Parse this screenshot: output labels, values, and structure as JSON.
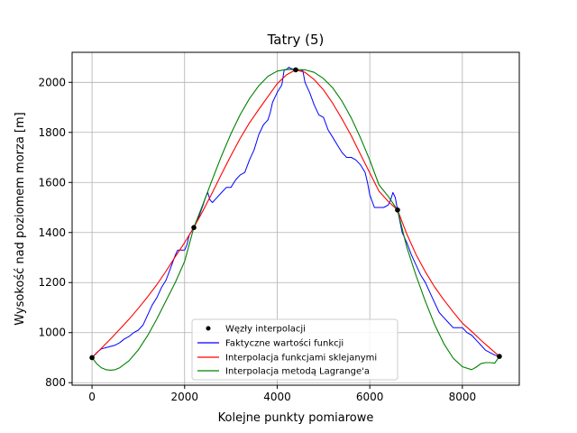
{
  "chart_data": {
    "type": "line",
    "title": "Tatry (5)",
    "xlabel": "Kolejne punkty pomiarowe",
    "ylabel": "Wysokość nad poziomem morza [m]",
    "xlim": [
      -430,
      9230
    ],
    "ylim": [
      790,
      2120
    ],
    "xticks": [
      0,
      2000,
      4000,
      6000,
      8000
    ],
    "yticks": [
      800,
      1000,
      1200,
      1400,
      1600,
      1800,
      2000
    ],
    "xtick_labels": [
      "0",
      "2000",
      "4000",
      "6000",
      "8000"
    ],
    "ytick_labels": [
      "800",
      "1000",
      "1200",
      "1400",
      "1600",
      "1800",
      "2000"
    ],
    "grid": true,
    "legend_position": "lower center",
    "nodes": {
      "name": "Węzły interpolacji",
      "color": "#000000",
      "x": [
        0,
        2200,
        4400,
        6600,
        8800
      ],
      "y": [
        900,
        1420,
        2050,
        1490,
        905
      ]
    },
    "series": [
      {
        "name": "Faktyczne wartości funkcji",
        "color": "#0000ff",
        "x": [
          0,
          100,
          200,
          300,
          500,
          600,
          700,
          800,
          900,
          1000,
          1100,
          1200,
          1300,
          1400,
          1500,
          1600,
          1700,
          1800,
          1850,
          1950,
          2000,
          2050,
          2100,
          2200,
          2300,
          2400,
          2450,
          2500,
          2550,
          2600,
          2700,
          2800,
          2900,
          3000,
          3100,
          3200,
          3300,
          3400,
          3500,
          3550,
          3600,
          3700,
          3750,
          3800,
          3850,
          3900,
          4000,
          4100,
          4150,
          4200,
          4250,
          4300,
          4400,
          4500,
          4550,
          4600,
          4700,
          4800,
          4900,
          5000,
          5100,
          5200,
          5300,
          5400,
          5500,
          5600,
          5700,
          5800,
          5900,
          5950,
          6000,
          6100,
          6200,
          6300,
          6400,
          6450,
          6500,
          6550,
          6600,
          6700,
          6800,
          6900,
          7000,
          7100,
          7200,
          7300,
          7400,
          7500,
          7600,
          7700,
          7800,
          7900,
          8000,
          8100,
          8200,
          8300,
          8400,
          8500,
          8600,
          8700,
          8800
        ],
        "y": [
          900,
          920,
          935,
          940,
          950,
          960,
          975,
          985,
          1000,
          1010,
          1030,
          1070,
          1110,
          1140,
          1180,
          1210,
          1260,
          1310,
          1330,
          1330,
          1330,
          1350,
          1390,
          1420,
          1460,
          1510,
          1540,
          1560,
          1530,
          1520,
          1540,
          1560,
          1580,
          1580,
          1610,
          1630,
          1640,
          1690,
          1730,
          1760,
          1790,
          1830,
          1840,
          1850,
          1880,
          1920,
          1960,
          1990,
          2050,
          2050,
          2060,
          2055,
          2050,
          2045,
          2050,
          2000,
          1960,
          1910,
          1870,
          1860,
          1810,
          1780,
          1750,
          1720,
          1700,
          1700,
          1690,
          1670,
          1640,
          1600,
          1550,
          1500,
          1500,
          1500,
          1510,
          1530,
          1560,
          1540,
          1490,
          1400,
          1360,
          1310,
          1270,
          1230,
          1200,
          1160,
          1120,
          1080,
          1060,
          1040,
          1020,
          1020,
          1020,
          1000,
          990,
          970,
          950,
          930,
          920,
          910,
          905
        ]
      },
      {
        "name": "Interpolacja funkcjami sklejanymi",
        "color": "#ff0000",
        "x": [
          0,
          200,
          400,
          600,
          800,
          1000,
          1200,
          1400,
          1600,
          1800,
          2000,
          2200,
          2400,
          2600,
          2800,
          3000,
          3200,
          3400,
          3600,
          3800,
          4000,
          4200,
          4400,
          4600,
          4800,
          5000,
          5200,
          5400,
          5600,
          5800,
          6000,
          6200,
          6400,
          6600,
          6800,
          7000,
          7200,
          7400,
          7600,
          7800,
          8000,
          8200,
          8400,
          8600,
          8800
        ],
        "y": [
          900,
          937,
          975,
          1014,
          1054,
          1097,
          1143,
          1192,
          1246,
          1304,
          1360,
          1420,
          1488,
          1560,
          1634,
          1707,
          1776,
          1838,
          1891,
          1943,
          1995,
          2030,
          2050,
          2040,
          2011,
          1970,
          1916,
          1854,
          1787,
          1712,
          1638,
          1565,
          1524,
          1490,
          1394,
          1312,
          1243,
          1183,
          1131,
          1083,
          1038,
          1005,
          970,
          937,
          905
        ]
      },
      {
        "name": "Interpolacja metodą Lagrange'a",
        "color": "#008000",
        "x": [
          0,
          100,
          200,
          300,
          400,
          500,
          600,
          800,
          1000,
          1200,
          1400,
          1600,
          1800,
          2000,
          2200,
          2400,
          2600,
          2800,
          3000,
          3200,
          3400,
          3600,
          3800,
          4000,
          4200,
          4400,
          4600,
          4800,
          5000,
          5200,
          5400,
          5600,
          5800,
          6000,
          6200,
          6400,
          6600,
          6800,
          7000,
          7200,
          7400,
          7600,
          7800,
          8000,
          8200,
          8300,
          8400,
          8500,
          8600,
          8700,
          8800
        ],
        "y": [
          900,
          876,
          860,
          852,
          850,
          852,
          860,
          888,
          931,
          988,
          1055,
          1128,
          1201,
          1285,
          1420,
          1515,
          1613,
          1707,
          1794,
          1871,
          1935,
          1986,
          2024,
          2045,
          2052,
          2051,
          2050,
          2040,
          2015,
          1978,
          1925,
          1858,
          1778,
          1689,
          1590,
          1544,
          1490,
          1341,
          1228,
          1125,
          1033,
          956,
          898,
          864,
          852,
          862,
          876,
          880,
          880,
          878,
          905
        ]
      }
    ]
  }
}
